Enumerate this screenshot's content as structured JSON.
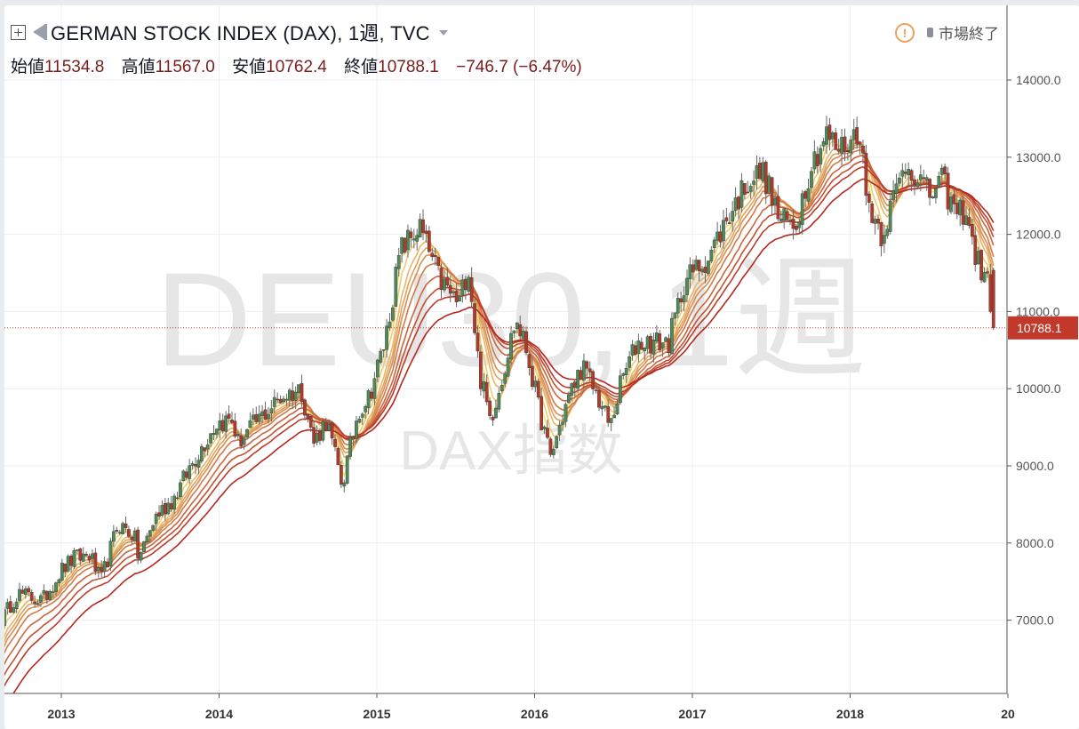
{
  "header": {
    "title": "GERMAN STOCK INDEX (DAX), 1週, TVC",
    "open_label": "始値",
    "open": "11534.8",
    "high_label": "高値",
    "high": "11567.0",
    "low_label": "安値",
    "low": "10762.4",
    "close_label": "終値",
    "close": "10788.1",
    "change": "−746.7 (−6.47%)",
    "status": "市場終了"
  },
  "watermark": {
    "symbol": "DEU30, 1週",
    "name": "DAX指数"
  },
  "colors": {
    "up": "#4e8a5c",
    "down": "#b23a2c",
    "ma_light": "#f7e07a",
    "ma_dark": "#b5281f",
    "price_line": "#c0392b"
  },
  "chart_data": {
    "type": "candlestick",
    "interval": "1週",
    "ylim": [
      6100,
      14900
    ],
    "y_ticks": [
      "14000.0",
      "13000.0",
      "12000.0",
      "11000.0",
      "10000.0",
      "9000.0",
      "8000.0",
      "7000.0"
    ],
    "x_ticks": [
      "2013",
      "2014",
      "2015",
      "2016",
      "2017",
      "2018",
      "20"
    ],
    "last_price_label": "10788.1",
    "anchors": [
      [
        2012.62,
        7000
      ],
      [
        2012.72,
        7350
      ],
      [
        2012.88,
        7250
      ],
      [
        2013.0,
        7650
      ],
      [
        2013.08,
        7800
      ],
      [
        2013.18,
        7850
      ],
      [
        2013.25,
        7500
      ],
      [
        2013.36,
        8250
      ],
      [
        2013.46,
        8100
      ],
      [
        2013.49,
        7800
      ],
      [
        2013.6,
        8350
      ],
      [
        2013.72,
        8600
      ],
      [
        2013.82,
        9000
      ],
      [
        2013.98,
        9550
      ],
      [
        2014.08,
        9600
      ],
      [
        2014.12,
        9300
      ],
      [
        2014.25,
        9600
      ],
      [
        2014.4,
        9900
      ],
      [
        2014.52,
        10000
      ],
      [
        2014.6,
        9300
      ],
      [
        2014.68,
        9600
      ],
      [
        2014.78,
        8750
      ],
      [
        2014.88,
        9700
      ],
      [
        2014.95,
        9900
      ],
      [
        2015.05,
        10600
      ],
      [
        2015.15,
        11800
      ],
      [
        2015.27,
        12100
      ],
      [
        2015.4,
        11400
      ],
      [
        2015.52,
        11100
      ],
      [
        2015.58,
        11600
      ],
      [
        2015.65,
        10200
      ],
      [
        2015.72,
        9600
      ],
      [
        2015.8,
        10200
      ],
      [
        2015.88,
        10900
      ],
      [
        2015.95,
        10500
      ],
      [
        2016.02,
        9800
      ],
      [
        2016.1,
        9100
      ],
      [
        2016.2,
        9800
      ],
      [
        2016.3,
        10300
      ],
      [
        2016.4,
        9900
      ],
      [
        2016.48,
        9500
      ],
      [
        2016.55,
        10100
      ],
      [
        2016.65,
        10600
      ],
      [
        2016.75,
        10600
      ],
      [
        2016.85,
        10600
      ],
      [
        2016.95,
        11400
      ],
      [
        2017.1,
        11700
      ],
      [
        2017.22,
        12200
      ],
      [
        2017.35,
        12700
      ],
      [
        2017.45,
        12800
      ],
      [
        2017.55,
        12200
      ],
      [
        2017.65,
        12100
      ],
      [
        2017.75,
        12900
      ],
      [
        2017.85,
        13300
      ],
      [
        2017.92,
        13100
      ],
      [
        2018.0,
        13200
      ],
      [
        2018.06,
        13400
      ],
      [
        2018.1,
        12500
      ],
      [
        2018.2,
        12000
      ],
      [
        2018.28,
        12500
      ],
      [
        2018.35,
        12900
      ],
      [
        2018.42,
        12800
      ],
      [
        2018.5,
        12500
      ],
      [
        2018.58,
        12700
      ],
      [
        2018.66,
        12300
      ],
      [
        2018.74,
        12300
      ],
      [
        2018.78,
        11800
      ],
      [
        2018.84,
        11500
      ],
      [
        2018.88,
        11300
      ],
      [
        2018.91,
        10788
      ]
    ],
    "last_candle": {
      "open": 11534.8,
      "high": 11567.0,
      "low": 10762.4,
      "close": 10788.1
    },
    "moving_averages": {
      "type": "EMA",
      "periods": [
        3,
        5,
        8,
        10,
        12,
        15,
        20,
        25,
        30,
        40
      ]
    }
  }
}
